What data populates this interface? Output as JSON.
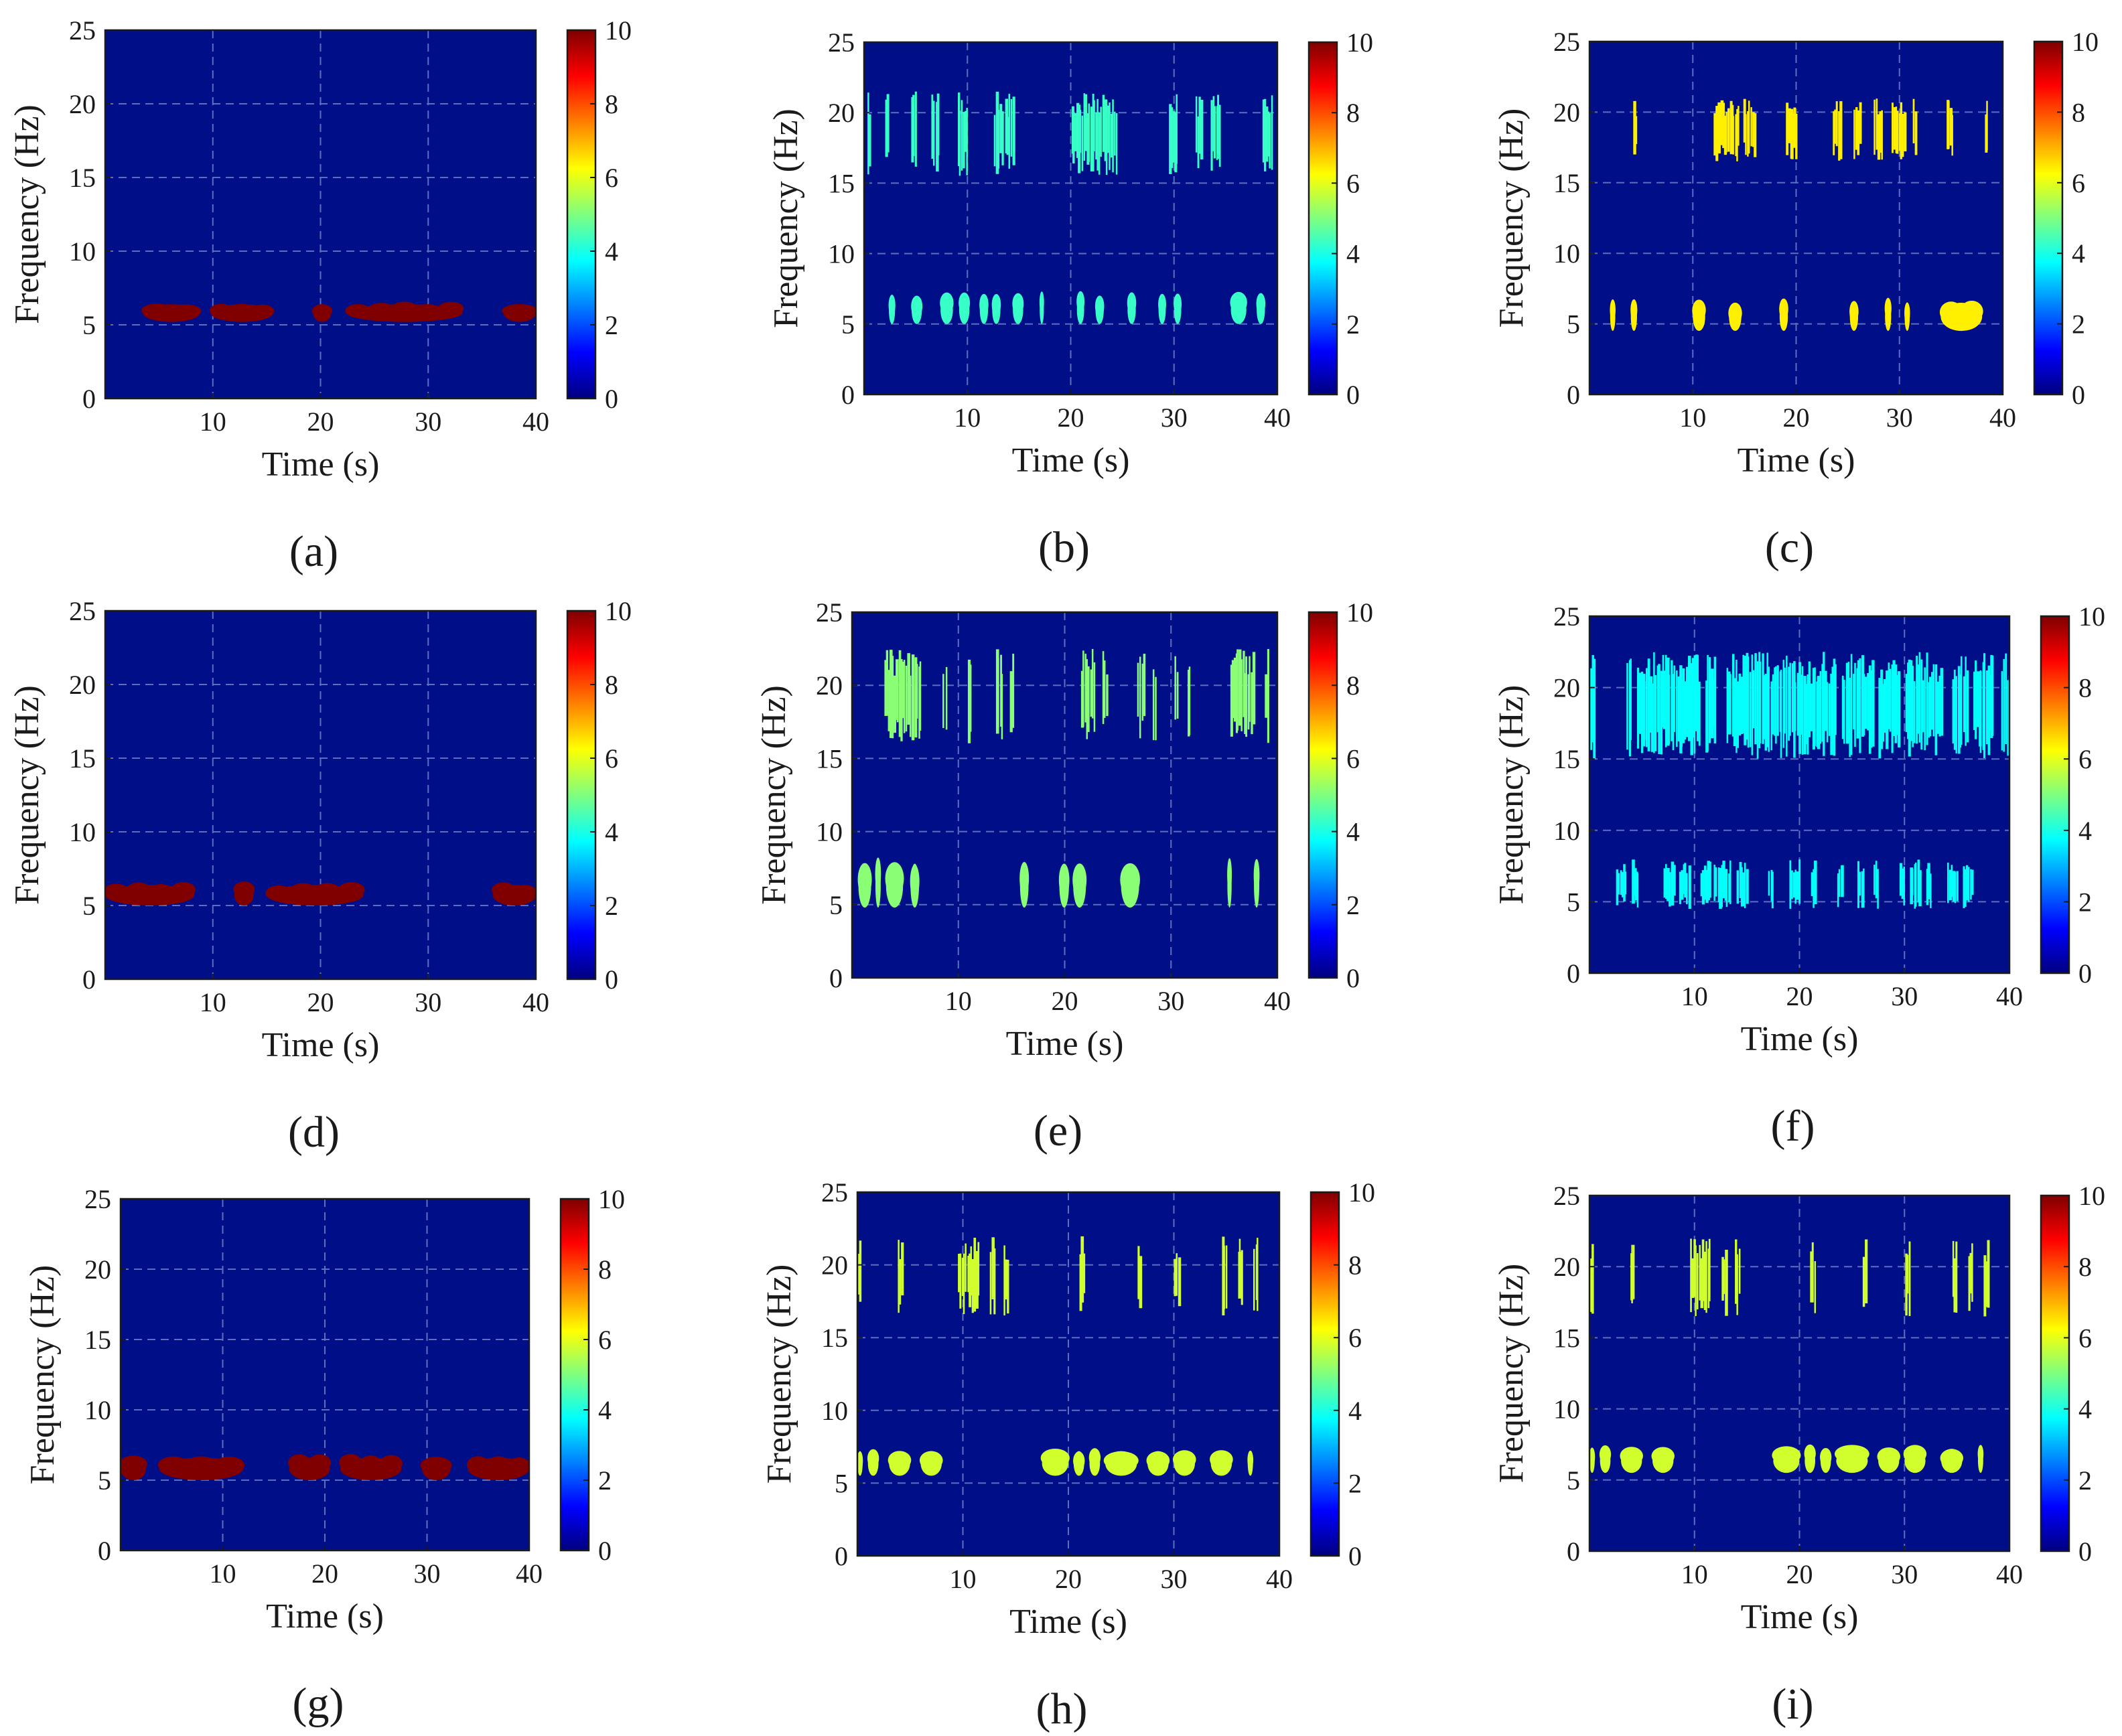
{
  "figure": {
    "colors": {
      "background": "#000f88",
      "grid": "#5a6fbf",
      "colormap": [
        "#00007f",
        "#0000ff",
        "#007fff",
        "#00ffff",
        "#7fff7f",
        "#ffff00",
        "#ff7f00",
        "#ff0000",
        "#7f0000"
      ]
    }
  },
  "chart_data": [
    {
      "id": "a",
      "type": "heatmap",
      "caption": "(a)",
      "xlabel": "Time (s)",
      "ylabel": "Frequency (Hz)",
      "xlim": [
        0,
        40
      ],
      "ylim": [
        0,
        25
      ],
      "xticks": [
        10,
        20,
        30,
        40
      ],
      "yticks": [
        0,
        5,
        10,
        15,
        20,
        25
      ],
      "colorbar": {
        "range": [
          0,
          10
        ],
        "ticks": [
          0,
          2,
          4,
          6,
          8,
          10
        ]
      },
      "grid": true,
      "dominant_value": 10,
      "bands": [
        {
          "f_low": 5.2,
          "f_high": 6.4,
          "value": 10,
          "events": [
            [
              3.5,
              8.8
            ],
            [
              9.8,
              15.6
            ],
            [
              19.3,
              21.0
            ],
            [
              22.4,
              33.2
            ],
            [
              37.0,
              40.0
            ]
          ]
        }
      ]
    },
    {
      "id": "b",
      "type": "heatmap",
      "caption": "(b)",
      "xlabel": "Time (s)",
      "ylabel": "Frequency (Hz)",
      "xlim": [
        0,
        40
      ],
      "ylim": [
        0,
        25
      ],
      "xticks": [
        10,
        20,
        30,
        40
      ],
      "yticks": [
        0,
        5,
        10,
        15,
        20,
        25
      ],
      "colorbar": {
        "range": [
          0,
          10
        ],
        "ticks": [
          0,
          2,
          4,
          6,
          8,
          10
        ]
      },
      "grid": true,
      "dominant_value": 4.3,
      "bands": [
        {
          "f_low": 15.5,
          "f_high": 21.5,
          "value": 4.3,
          "events": [
            [
              0.3,
              0.6
            ],
            [
              2.0,
              2.3
            ],
            [
              4.5,
              5.0
            ],
            [
              6.5,
              7.2
            ],
            [
              9.0,
              10.0
            ],
            [
              12.5,
              13.4
            ],
            [
              13.6,
              14.5
            ],
            [
              20.0,
              24.5
            ],
            [
              29.5,
              30.3
            ],
            [
              32.0,
              32.7
            ],
            [
              33.5,
              34.5
            ],
            [
              38.5,
              39.5
            ]
          ]
        },
        {
          "f_low": 5.0,
          "f_high": 7.0,
          "value": 4.3,
          "events": [
            [
              2.4,
              3.0
            ],
            [
              4.6,
              5.6
            ],
            [
              7.4,
              8.6
            ],
            [
              9.2,
              10.2
            ],
            [
              11.2,
              12.0
            ],
            [
              12.4,
              13.2
            ],
            [
              14.4,
              15.4
            ],
            [
              17.0,
              17.4
            ],
            [
              20.6,
              21.3
            ],
            [
              22.4,
              23.2
            ],
            [
              25.5,
              26.3
            ],
            [
              28.5,
              29.2
            ],
            [
              30.0,
              30.7
            ],
            [
              35.5,
              37.0
            ],
            [
              38.0,
              38.8
            ]
          ]
        }
      ]
    },
    {
      "id": "c",
      "type": "heatmap",
      "caption": "(c)",
      "xlabel": "Time (s)",
      "ylabel": "Frequency (Hz)",
      "xlim": [
        0,
        40
      ],
      "ylim": [
        0,
        25
      ],
      "xticks": [
        10,
        20,
        30,
        40
      ],
      "yticks": [
        0,
        5,
        10,
        15,
        20,
        25
      ],
      "colorbar": {
        "range": [
          0,
          10
        ],
        "ticks": [
          0,
          2,
          4,
          6,
          8,
          10
        ]
      },
      "grid": true,
      "dominant_value": 6.4,
      "bands": [
        {
          "f_low": 16.5,
          "f_high": 21.0,
          "value": 6.4,
          "events": [
            [
              4.2,
              4.5
            ],
            [
              12.0,
              14.5
            ],
            [
              14.8,
              16.0
            ],
            [
              19.0,
              20.0
            ],
            [
              23.5,
              24.3
            ],
            [
              25.5,
              26.2
            ],
            [
              27.5,
              28.3
            ],
            [
              29.2,
              30.5
            ],
            [
              31.2,
              31.6
            ],
            [
              34.5,
              35.2
            ],
            [
              38.2,
              38.5
            ]
          ]
        },
        {
          "f_low": 4.5,
          "f_high": 6.5,
          "value": 6.4,
          "events": [
            [
              2.0,
              2.5
            ],
            [
              4.0,
              4.6
            ],
            [
              10.0,
              11.2
            ],
            [
              13.5,
              14.7
            ],
            [
              18.4,
              19.2
            ],
            [
              25.2,
              26.0
            ],
            [
              28.6,
              29.2
            ],
            [
              30.5,
              31.0
            ],
            [
              34.0,
              38.0
            ]
          ]
        }
      ]
    },
    {
      "id": "d",
      "type": "heatmap",
      "caption": "(d)",
      "xlabel": "Time (s)",
      "ylabel": "Frequency (Hz)",
      "xlim": [
        0,
        40
      ],
      "ylim": [
        0,
        25
      ],
      "xticks": [
        10,
        20,
        30,
        40
      ],
      "yticks": [
        0,
        5,
        10,
        15,
        20,
        25
      ],
      "colorbar": {
        "range": [
          0,
          10
        ],
        "ticks": [
          0,
          2,
          4,
          6,
          8,
          10
        ]
      },
      "grid": true,
      "dominant_value": 10,
      "bands": [
        {
          "f_low": 5.0,
          "f_high": 6.4,
          "value": 10,
          "events": [
            [
              0.0,
              8.3
            ],
            [
              12.0,
              13.8
            ],
            [
              15.0,
              24.0
            ],
            [
              36.0,
              40.0
            ]
          ]
        }
      ]
    },
    {
      "id": "e",
      "type": "heatmap",
      "caption": "(e)",
      "xlabel": "Time (s)",
      "ylabel": "Frequency (Hz)",
      "xlim": [
        0,
        40
      ],
      "ylim": [
        0,
        25
      ],
      "xticks": [
        10,
        20,
        30,
        40
      ],
      "yticks": [
        0,
        5,
        10,
        15,
        20,
        25
      ],
      "colorbar": {
        "range": [
          0,
          10
        ],
        "ticks": [
          0,
          2,
          4,
          6,
          8,
          10
        ]
      },
      "grid": true,
      "dominant_value": 5.1,
      "bands": [
        {
          "f_low": 16.0,
          "f_high": 22.5,
          "value": 5.1,
          "events": [
            [
              3.0,
              6.5
            ],
            [
              8.5,
              8.9
            ],
            [
              10.8,
              11.2
            ],
            [
              13.5,
              14.2
            ],
            [
              14.8,
              15.2
            ],
            [
              21.5,
              22.8
            ],
            [
              23.5,
              24.0
            ],
            [
              26.8,
              27.5
            ],
            [
              28.2,
              28.6
            ],
            [
              30.3,
              30.6
            ],
            [
              31.5,
              31.8
            ],
            [
              35.5,
              37.8
            ],
            [
              38.8,
              39.2
            ]
          ]
        },
        {
          "f_low": 4.8,
          "f_high": 7.8,
          "value": 5.1,
          "events": [
            [
              0.6,
              1.8
            ],
            [
              2.2,
              2.7
            ],
            [
              3.2,
              4.8
            ],
            [
              5.5,
              6.3
            ],
            [
              15.8,
              16.6
            ],
            [
              19.5,
              20.4
            ],
            [
              20.8,
              22.0
            ],
            [
              25.3,
              27.0
            ],
            [
              35.3,
              35.7
            ],
            [
              37.8,
              38.3
            ]
          ]
        }
      ]
    },
    {
      "id": "f",
      "type": "heatmap",
      "caption": "(f)",
      "xlabel": "Time (s)",
      "ylabel": "Frequency (Hz)",
      "xlim": [
        0,
        40
      ],
      "ylim": [
        0,
        25
      ],
      "xticks": [
        10,
        20,
        30,
        40
      ],
      "yticks": [
        0,
        5,
        10,
        15,
        20,
        25
      ],
      "colorbar": {
        "range": [
          0,
          10
        ],
        "ticks": [
          0,
          2,
          4,
          6,
          8,
          10
        ]
      },
      "grid": true,
      "dominant_value": 3.8,
      "bands": [
        {
          "f_low": 15.0,
          "f_high": 22.5,
          "value": 3.8,
          "events": [
            [
              0.0,
              0.5
            ],
            [
              3.5,
              4.0
            ],
            [
              4.5,
              10.5
            ],
            [
              11.0,
              12.0
            ],
            [
              13.0,
              23.5
            ],
            [
              24.0,
              27.0
            ],
            [
              27.5,
              29.5
            ],
            [
              30.0,
              33.5
            ],
            [
              34.5,
              36.0
            ],
            [
              36.5,
              38.5
            ],
            [
              39.2,
              40.0
            ]
          ]
        },
        {
          "f_low": 4.5,
          "f_high": 8.0,
          "value": 3.8,
          "events": [
            [
              2.5,
              3.5
            ],
            [
              4.0,
              4.6
            ],
            [
              7.0,
              8.0
            ],
            [
              8.5,
              9.5
            ],
            [
              10.5,
              11.5
            ],
            [
              11.8,
              13.5
            ],
            [
              14.0,
              15.0
            ],
            [
              17.0,
              17.5
            ],
            [
              19.0,
              20.0
            ],
            [
              21.0,
              21.5
            ],
            [
              23.5,
              24.0
            ],
            [
              25.5,
              26.2
            ],
            [
              27.0,
              27.5
            ],
            [
              29.5,
              30.0
            ],
            [
              30.5,
              31.5
            ],
            [
              32.0,
              32.5
            ],
            [
              34.0,
              35.0
            ],
            [
              35.5,
              36.5
            ]
          ]
        }
      ]
    },
    {
      "id": "g",
      "type": "heatmap",
      "caption": "(g)",
      "xlabel": "Time (s)",
      "ylabel": "Frequency (Hz)",
      "xlim": [
        0,
        40
      ],
      "ylim": [
        0,
        25
      ],
      "xticks": [
        10,
        20,
        30,
        40
      ],
      "yticks": [
        0,
        5,
        10,
        15,
        20,
        25
      ],
      "colorbar": {
        "range": [
          0,
          10
        ],
        "ticks": [
          0,
          2,
          4,
          6,
          8,
          10
        ]
      },
      "grid": true,
      "dominant_value": 10,
      "bands": [
        {
          "f_low": 5.0,
          "f_high": 6.6,
          "value": 10,
          "events": [
            [
              0.0,
              2.5
            ],
            [
              3.8,
              12.0
            ],
            [
              16.5,
              20.5
            ],
            [
              21.5,
              27.5
            ],
            [
              29.5,
              32.3
            ],
            [
              34.0,
              40.0
            ]
          ]
        }
      ]
    },
    {
      "id": "h",
      "type": "heatmap",
      "caption": "(h)",
      "xlabel": "Time (s)",
      "ylabel": "Frequency (Hz)",
      "xlim": [
        0,
        40
      ],
      "ylim": [
        0,
        25
      ],
      "xticks": [
        10,
        20,
        30,
        40
      ],
      "yticks": [
        0,
        5,
        10,
        15,
        20,
        25
      ],
      "colorbar": {
        "range": [
          0,
          10
        ],
        "ticks": [
          0,
          2,
          4,
          6,
          8,
          10
        ]
      },
      "grid": true,
      "dominant_value": 5.8,
      "bands": [
        {
          "f_low": 16.5,
          "f_high": 22.0,
          "value": 5.8,
          "events": [
            [
              0.0,
              0.3
            ],
            [
              3.8,
              4.3
            ],
            [
              9.5,
              11.5
            ],
            [
              12.5,
              13.0
            ],
            [
              13.8,
              14.3
            ],
            [
              21.0,
              21.5
            ],
            [
              26.5,
              26.8
            ],
            [
              30.0,
              30.5
            ],
            [
              34.5,
              35.0
            ],
            [
              36.0,
              36.5
            ],
            [
              37.5,
              38.0
            ]
          ]
        },
        {
          "f_low": 5.5,
          "f_high": 7.2,
          "value": 5.8,
          "events": [
            [
              0.0,
              0.5
            ],
            [
              1.0,
              2.0
            ],
            [
              3.0,
              5.0
            ],
            [
              6.0,
              8.0
            ],
            [
              17.5,
              20.0
            ],
            [
              20.5,
              21.5
            ],
            [
              22.0,
              23.0
            ],
            [
              23.5,
              26.5
            ],
            [
              27.5,
              29.5
            ],
            [
              30.0,
              32.0
            ],
            [
              33.5,
              35.5
            ],
            [
              37.0,
              37.5
            ]
          ]
        }
      ]
    },
    {
      "id": "i",
      "type": "heatmap",
      "caption": "(i)",
      "xlabel": "Time (s)",
      "ylabel": "Frequency (Hz)",
      "xlim": [
        0,
        40
      ],
      "ylim": [
        0,
        25
      ],
      "xticks": [
        10,
        20,
        30,
        40
      ],
      "yticks": [
        0,
        5,
        10,
        15,
        20,
        25
      ],
      "colorbar": {
        "range": [
          0,
          10
        ],
        "ticks": [
          0,
          2,
          4,
          6,
          8,
          10
        ]
      },
      "grid": true,
      "dominant_value": 5.8,
      "bands": [
        {
          "f_low": 16.5,
          "f_high": 22.0,
          "value": 5.8,
          "events": [
            [
              0.0,
              0.3
            ],
            [
              3.8,
              4.3
            ],
            [
              9.5,
              11.5
            ],
            [
              12.5,
              13.0
            ],
            [
              13.8,
              14.3
            ],
            [
              21.0,
              21.5
            ],
            [
              26.0,
              26.3
            ],
            [
              30.0,
              30.5
            ],
            [
              34.5,
              35.0
            ],
            [
              36.0,
              36.5
            ],
            [
              37.5,
              38.0
            ]
          ]
        },
        {
          "f_low": 5.5,
          "f_high": 7.2,
          "value": 5.8,
          "events": [
            [
              0.0,
              0.5
            ],
            [
              1.0,
              2.0
            ],
            [
              3.0,
              5.0
            ],
            [
              6.0,
              8.0
            ],
            [
              17.5,
              20.0
            ],
            [
              20.5,
              21.5
            ],
            [
              22.0,
              23.0
            ],
            [
              23.5,
              26.5
            ],
            [
              27.5,
              29.5
            ],
            [
              30.0,
              32.0
            ],
            [
              33.5,
              35.5
            ],
            [
              37.0,
              37.5
            ]
          ]
        }
      ]
    }
  ]
}
